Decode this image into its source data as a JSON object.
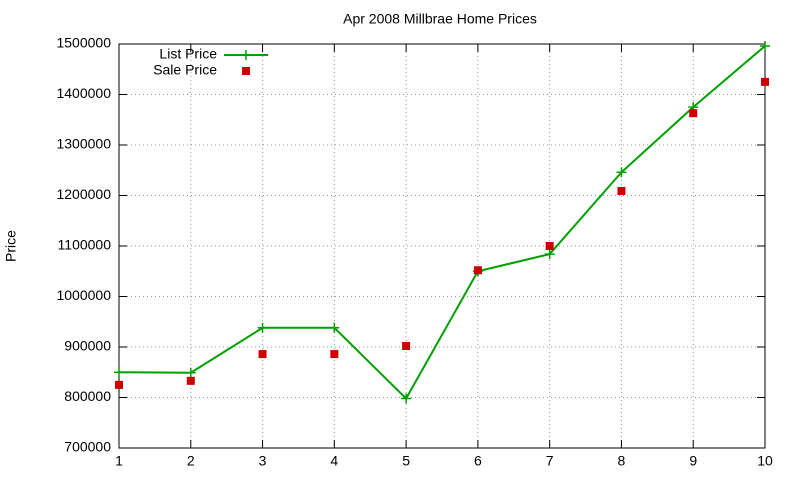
{
  "chart_data": {
    "type": "line",
    "title": "Apr 2008 Millbrae Home Prices",
    "y_label": "Price",
    "x": [
      1,
      2,
      3,
      4,
      5,
      6,
      7,
      8,
      9,
      10
    ],
    "series": [
      {
        "name": "List Price",
        "color": "#00a000",
        "style": "linespoints",
        "values": [
          850000,
          849000,
          938000,
          938000,
          798000,
          1050000,
          1084000,
          1246000,
          1375000,
          1496000
        ]
      },
      {
        "name": "Sale Price",
        "color": "#cc0000",
        "style": "points",
        "values": [
          825000,
          833000,
          886000,
          886000,
          902000,
          1052000,
          1100000,
          1209000,
          1363000,
          1425000
        ]
      }
    ],
    "xlim": [
      1,
      10
    ],
    "xticks": [
      1,
      2,
      3,
      4,
      5,
      6,
      7,
      8,
      9,
      10
    ],
    "ylim": [
      700000,
      1500000
    ],
    "yticks": [
      700000,
      800000,
      900000,
      1000000,
      1100000,
      1200000,
      1300000,
      1400000,
      1500000
    ],
    "grid": true,
    "legend": "top-left"
  }
}
